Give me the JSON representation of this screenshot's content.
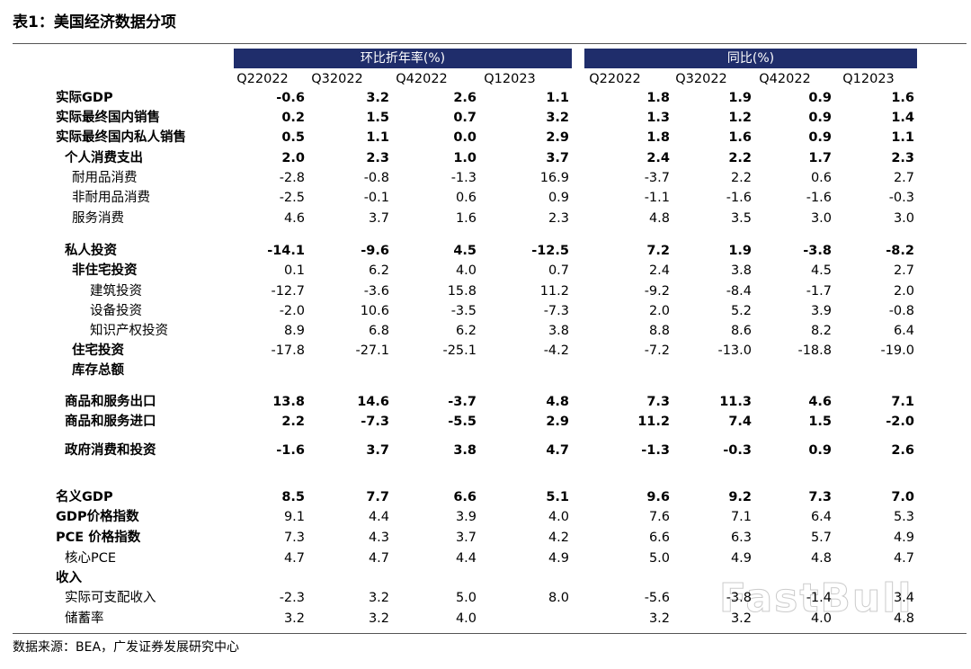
{
  "title": "表1：美国经济数据分项",
  "table": {
    "groups": [
      "环比折年率(%)",
      "同比(%)"
    ],
    "columns": [
      "Q22022",
      "Q32022",
      "Q42022",
      "Q12023",
      "Q22022",
      "Q32022",
      "Q42022",
      "Q12023"
    ],
    "rows": [
      {
        "label": "实际GDP",
        "values": [
          "-0.6",
          "3.2",
          "2.6",
          "1.1",
          "1.8",
          "1.9",
          "0.9",
          "1.6"
        ]
      },
      {
        "label": "实际最终国内销售",
        "values": [
          "0.2",
          "1.5",
          "0.7",
          "3.2",
          "1.3",
          "1.2",
          "0.9",
          "1.4"
        ]
      },
      {
        "label": "实际最终国内私人销售",
        "values": [
          "0.5",
          "1.1",
          "0.0",
          "2.9",
          "1.8",
          "1.6",
          "0.9",
          "1.1"
        ]
      },
      {
        "label": "个人消费支出",
        "values": [
          "2.0",
          "2.3",
          "1.0",
          "3.7",
          "2.4",
          "2.2",
          "1.7",
          "2.3"
        ]
      },
      {
        "label": "耐用品消费",
        "values": [
          "-2.8",
          "-0.8",
          "-1.3",
          "16.9",
          "-3.7",
          "2.2",
          "0.6",
          "2.7"
        ]
      },
      {
        "label": "非耐用品消费",
        "values": [
          "-2.5",
          "-0.1",
          "0.6",
          "0.9",
          "-1.1",
          "-1.6",
          "-1.6",
          "-0.3"
        ]
      },
      {
        "label": "服务消费",
        "values": [
          "4.6",
          "3.7",
          "1.6",
          "2.3",
          "4.8",
          "3.5",
          "3.0",
          "3.0"
        ]
      },
      {
        "label": "私人投资",
        "values": [
          "-14.1",
          "-9.6",
          "4.5",
          "-12.5",
          "7.2",
          "1.9",
          "-3.8",
          "-8.2"
        ]
      },
      {
        "label": "非住宅投资",
        "values": [
          "0.1",
          "6.2",
          "4.0",
          "0.7",
          "2.4",
          "3.8",
          "4.5",
          "2.7"
        ]
      },
      {
        "label": "建筑投资",
        "values": [
          "-12.7",
          "-3.6",
          "15.8",
          "11.2",
          "-9.2",
          "-8.4",
          "-1.7",
          "2.0"
        ]
      },
      {
        "label": "设备投资",
        "values": [
          "-2.0",
          "10.6",
          "-3.5",
          "-7.3",
          "2.0",
          "5.2",
          "3.9",
          "-0.8"
        ]
      },
      {
        "label": "知识产权投资",
        "values": [
          "8.9",
          "6.8",
          "6.2",
          "3.8",
          "8.8",
          "8.6",
          "8.2",
          "6.4"
        ]
      },
      {
        "label": "住宅投资",
        "values": [
          "-17.8",
          "-27.1",
          "-25.1",
          "-4.2",
          "-7.2",
          "-13.0",
          "-18.8",
          "-19.0"
        ]
      },
      {
        "label": "库存总额",
        "values": [
          null,
          null,
          null,
          null,
          null,
          null,
          null,
          null
        ]
      },
      {
        "label": "商品和服务出口",
        "values": [
          "13.8",
          "14.6",
          "-3.7",
          "4.8",
          "7.3",
          "11.3",
          "4.6",
          "7.1"
        ]
      },
      {
        "label": "商品和服务进口",
        "values": [
          "2.2",
          "-7.3",
          "-5.5",
          "2.9",
          "11.2",
          "7.4",
          "1.5",
          "-2.0"
        ]
      },
      {
        "label": "政府消费和投资",
        "values": [
          "-1.6",
          "3.7",
          "3.8",
          "4.7",
          "-1.3",
          "-0.3",
          "0.9",
          "2.6"
        ]
      },
      {
        "label": "名义GDP",
        "values": [
          "8.5",
          "7.7",
          "6.6",
          "5.1",
          "9.6",
          "9.2",
          "7.3",
          "7.0"
        ]
      },
      {
        "label": "GDP价格指数",
        "values": [
          "9.1",
          "4.4",
          "3.9",
          "4.0",
          "7.6",
          "7.1",
          "6.4",
          "5.3"
        ]
      },
      {
        "label": "PCE 价格指数",
        "values": [
          "7.3",
          "4.3",
          "3.7",
          "4.2",
          "6.6",
          "6.3",
          "5.7",
          "4.9"
        ]
      },
      {
        "label": "核心PCE",
        "values": [
          "4.7",
          "4.7",
          "4.4",
          "4.9",
          "5.0",
          "4.9",
          "4.8",
          "4.7"
        ]
      },
      {
        "label": "收入",
        "values": [
          null,
          null,
          null,
          null,
          null,
          null,
          null,
          null
        ]
      },
      {
        "label": "实际可支配收入",
        "values": [
          "-2.3",
          "3.2",
          "5.0",
          "8.0",
          "-5.6",
          "-3.8",
          "-1.4",
          "3.4"
        ]
      },
      {
        "label": "储蓄率",
        "values": [
          "3.2",
          "3.2",
          "4.0",
          null,
          "3.2",
          "3.2",
          "4.0",
          "4.8"
        ]
      }
    ]
  },
  "source": "数据来源：BEA，广发证券发展研究中心",
  "watermark": "FastBull"
}
